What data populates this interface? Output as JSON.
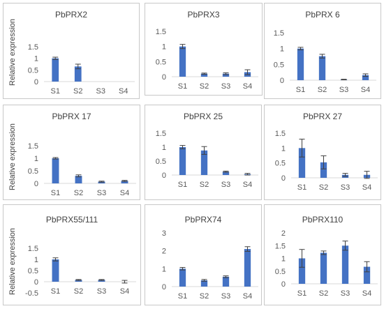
{
  "chart_data": [
    {
      "type": "bar",
      "title": "PbPRX2",
      "ylabel": "Relative expression",
      "categories": [
        "S1",
        "S2",
        "S3",
        "S4"
      ],
      "values": [
        1.0,
        0.65,
        0.0,
        0.0
      ],
      "errors": [
        0.05,
        0.1,
        0,
        0
      ],
      "ylim": [
        0,
        1.5
      ],
      "yticks": [
        "0",
        "0.5",
        "1",
        "1.5"
      ],
      "trendline": "polynomial",
      "color": "#4472c4"
    },
    {
      "type": "bar",
      "title": "PbPRX3",
      "ylabel": "",
      "categories": [
        "S1",
        "S2",
        "S3",
        "S4"
      ],
      "values": [
        1.0,
        0.1,
        0.1,
        0.15
      ],
      "errors": [
        0.07,
        0.02,
        0.03,
        0.08
      ],
      "ylim": [
        0,
        1.5
      ],
      "yticks": [
        "0",
        "0.5",
        "1",
        "1.5"
      ],
      "trendline": "polynomial",
      "color": "#4472c4"
    },
    {
      "type": "bar",
      "title": "PbPRX 6",
      "ylabel": "",
      "categories": [
        "S1",
        "S2",
        "S3",
        "S4"
      ],
      "values": [
        1.0,
        0.76,
        0.02,
        0.16
      ],
      "errors": [
        0.04,
        0.06,
        0.01,
        0.04
      ],
      "ylim": [
        0,
        1.5
      ],
      "yticks": [
        "0",
        "0.5",
        "1",
        "1.5"
      ],
      "trendline": "polynomial",
      "color": "#4472c4"
    },
    {
      "type": "bar",
      "title": "PbPRX 17",
      "ylabel": "Relative expression",
      "categories": [
        "S1",
        "S2",
        "S3",
        "S4"
      ],
      "values": [
        1.0,
        0.3,
        0.07,
        0.1
      ],
      "errors": [
        0.03,
        0.04,
        0.02,
        0.02
      ],
      "ylim": [
        0,
        1.5
      ],
      "yticks": [
        "0",
        "0.5",
        "1",
        "1.5"
      ],
      "trendline": "polynomial",
      "color": "#4472c4"
    },
    {
      "type": "bar",
      "title": "PbPRX 25",
      "ylabel": "",
      "categories": [
        "S1",
        "S2",
        "S3",
        "S4"
      ],
      "values": [
        1.0,
        0.88,
        0.12,
        0.03
      ],
      "errors": [
        0.06,
        0.14,
        0.02,
        0.03
      ],
      "ylim": [
        0,
        1.5
      ],
      "yticks": [
        "0",
        "0.5",
        "1",
        "1.5"
      ],
      "trendline": "polynomial",
      "color": "#4472c4"
    },
    {
      "type": "bar",
      "title": "PbPRX 27",
      "ylabel": "",
      "categories": [
        "S1",
        "S2",
        "S3",
        "S4"
      ],
      "values": [
        1.0,
        0.52,
        0.1,
        0.1
      ],
      "errors": [
        0.3,
        0.22,
        0.05,
        0.12
      ],
      "ylim": [
        0,
        1.5
      ],
      "yticks": [
        "0",
        "0.5",
        "1",
        "1.5"
      ],
      "trendline": "polynomial",
      "color": "#4472c4"
    },
    {
      "type": "bar",
      "title": "PbPRX55/111",
      "ylabel": "Relative expression",
      "categories": [
        "S1",
        "S2",
        "S3",
        "S4"
      ],
      "values": [
        1.0,
        0.08,
        0.08,
        0.0
      ],
      "errors": [
        0.07,
        0.02,
        0.02,
        0.06
      ],
      "ylim": [
        -0.5,
        1.5
      ],
      "yticks": [
        "-0.5",
        "0",
        "0.5",
        "1",
        "1.5"
      ],
      "trendline": "polynomial",
      "color": "#4472c4"
    },
    {
      "type": "bar",
      "title": "PbPRX74",
      "ylabel": "",
      "categories": [
        "S1",
        "S2",
        "S3",
        "S4"
      ],
      "values": [
        1.0,
        0.35,
        0.55,
        2.1
      ],
      "errors": [
        0.07,
        0.05,
        0.05,
        0.13
      ],
      "ylim": [
        0,
        3
      ],
      "yticks": [
        "0",
        "1",
        "2",
        "3"
      ],
      "trendline": "polynomial",
      "color": "#4472c4"
    },
    {
      "type": "bar",
      "title": "PbPRX110",
      "ylabel": "",
      "categories": [
        "S1",
        "S2",
        "S3",
        "S4"
      ],
      "values": [
        1.0,
        1.22,
        1.5,
        0.67
      ],
      "errors": [
        0.35,
        0.07,
        0.18,
        0.2
      ],
      "ylim": [
        0,
        2
      ],
      "yticks": [
        "0",
        "0.5",
        "1",
        "1.5",
        "2"
      ],
      "trendline": "polynomial",
      "color": "#4472c4"
    }
  ]
}
